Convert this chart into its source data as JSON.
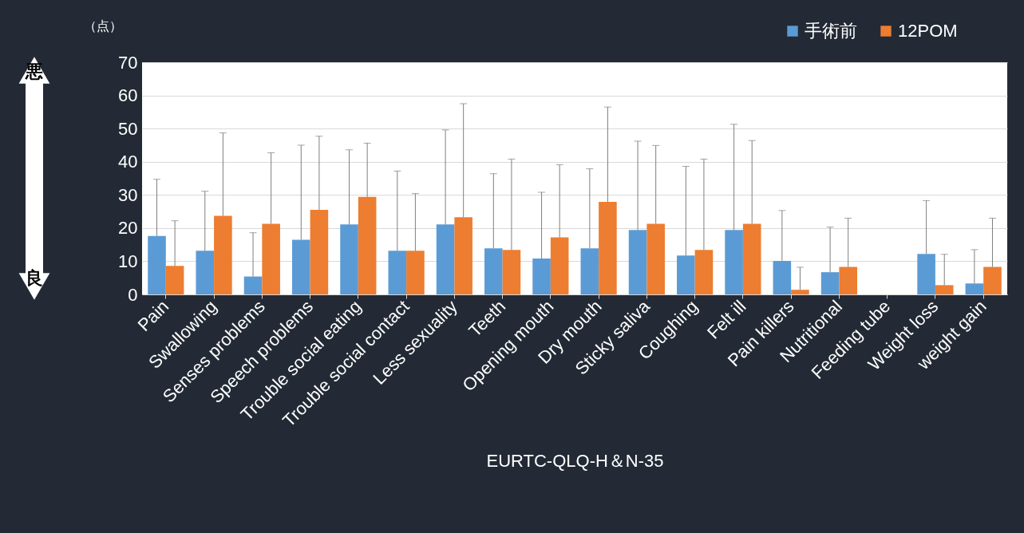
{
  "chart_data": {
    "type": "bar",
    "xlabel": "EURTC-QLQ-H＆N-35",
    "ylabel": "（点）",
    "categories": [
      "Pain",
      "Swallowing",
      "Senses problems",
      "Speech problems",
      "Trouble social eating",
      "Trouble  social contact",
      "Less  sexuality",
      "Teeth",
      "Opening mouth",
      "Dry mouth",
      "Sticky saliva",
      "Coughing",
      "Felt ill",
      "Pain  killers",
      "Nutritional",
      "Feeding tube",
      "Weight loss",
      "weight  gain"
    ],
    "series": [
      {
        "name": "手術前",
        "color": "#5b9bd5",
        "values": [
          17.6,
          13.2,
          5.4,
          16.5,
          21.1,
          13.2,
          21.1,
          13.9,
          10.8,
          13.9,
          19.4,
          11.7,
          19.4,
          10.1,
          6.7,
          null,
          12.2,
          3.3
        ],
        "errors": [
          [
            17.6,
            34.7
          ],
          [
            13.2,
            31.1
          ],
          [
            5.4,
            18.6
          ],
          [
            16.5,
            45.0
          ],
          [
            21.1,
            43.6
          ],
          [
            13.2,
            37.2
          ],
          [
            21.1,
            49.6
          ],
          [
            13.9,
            36.4
          ],
          [
            10.8,
            30.8
          ],
          [
            13.9,
            37.9
          ],
          [
            19.4,
            46.2
          ],
          [
            11.7,
            38.6
          ],
          [
            19.4,
            51.3
          ],
          [
            10.1,
            25.3
          ],
          [
            6.7,
            20.3
          ],
          null,
          [
            12.2,
            28.3
          ],
          [
            3.3,
            13.5
          ]
        ]
      },
      {
        "name": "12POM",
        "color": "#ed7d31",
        "values": [
          8.6,
          23.7,
          21.3,
          25.5,
          29.4,
          13.2,
          23.3,
          13.4,
          17.2,
          27.9,
          21.3,
          13.4,
          21.3,
          1.4,
          8.3,
          null,
          2.8,
          8.3
        ],
        "errors": [
          [
            8.6,
            22.2
          ],
          [
            23.7,
            48.7
          ],
          [
            21.3,
            42.7
          ],
          [
            25.5,
            47.7
          ],
          [
            29.4,
            45.6
          ],
          [
            13.2,
            30.4
          ],
          [
            23.3,
            57.5
          ],
          [
            13.4,
            40.8
          ],
          [
            17.2,
            39.1
          ],
          [
            27.9,
            56.5
          ],
          [
            21.3,
            44.9
          ],
          [
            13.4,
            40.8
          ],
          [
            21.3,
            46.4
          ],
          [
            1.4,
            8.2
          ],
          [
            8.3,
            23.0
          ],
          null,
          [
            2.8,
            12.1
          ],
          [
            8.3,
            23.0
          ]
        ]
      }
    ],
    "ylim": [
      0,
      70
    ],
    "yticks": [
      0,
      10,
      20,
      30,
      40,
      50,
      60,
      70
    ],
    "grid": "y",
    "legend": "top right",
    "annotations": [
      "悪",
      "良"
    ]
  }
}
